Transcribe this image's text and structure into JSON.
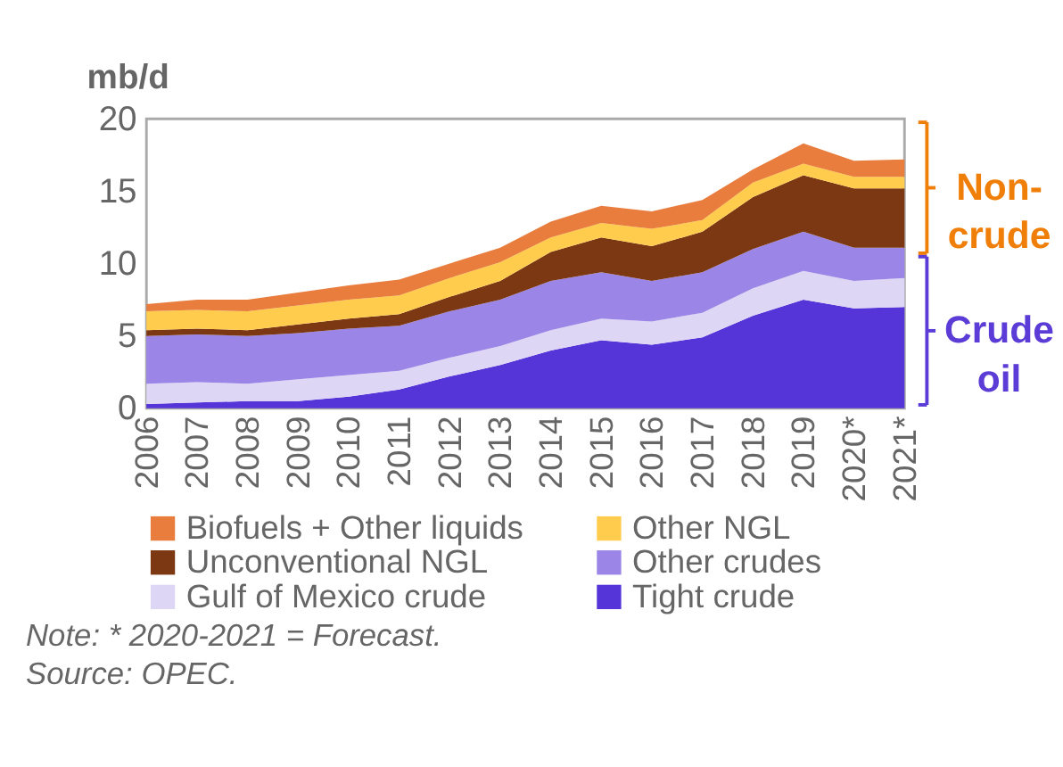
{
  "chart_data": {
    "type": "area",
    "stacked": true,
    "ylabel": "mb/d",
    "categories": [
      "2006",
      "2007",
      "2008",
      "2009",
      "2010",
      "2011",
      "2012",
      "2013",
      "2014",
      "2015",
      "2016",
      "2017",
      "2018",
      "2019",
      "2020*",
      "2021*"
    ],
    "series": [
      {
        "name": "Tight crude",
        "color": "#5534d8",
        "values": [
          0.3,
          0.4,
          0.5,
          0.5,
          0.8,
          1.3,
          2.2,
          3.0,
          4.0,
          4.7,
          4.4,
          4.9,
          6.4,
          7.5,
          6.9,
          7.0
        ]
      },
      {
        "name": "Gulf of Mexico crude",
        "color": "#ddd6f5",
        "values": [
          1.4,
          1.4,
          1.2,
          1.5,
          1.5,
          1.3,
          1.3,
          1.3,
          1.4,
          1.5,
          1.6,
          1.7,
          1.9,
          2.0,
          1.9,
          2.0
        ]
      },
      {
        "name": "Other crudes",
        "color": "#9b85e6",
        "values": [
          3.3,
          3.3,
          3.3,
          3.2,
          3.2,
          3.1,
          3.2,
          3.2,
          3.4,
          3.2,
          2.8,
          2.8,
          2.7,
          2.7,
          2.3,
          2.1
        ]
      },
      {
        "name": "Unconventional NGL",
        "color": "#7b3812",
        "values": [
          0.4,
          0.4,
          0.4,
          0.6,
          0.7,
          0.8,
          1.0,
          1.3,
          2.0,
          2.4,
          2.4,
          2.8,
          3.6,
          3.9,
          4.1,
          4.1
        ]
      },
      {
        "name": "Other NGL",
        "color": "#ffcc4d",
        "values": [
          1.3,
          1.3,
          1.3,
          1.3,
          1.3,
          1.3,
          1.3,
          1.3,
          1.0,
          1.0,
          1.2,
          0.8,
          1.0,
          0.8,
          0.8,
          0.8
        ]
      },
      {
        "name": "Biofuels + Other liquids",
        "color": "#e87d3e",
        "values": [
          0.5,
          0.7,
          0.8,
          0.9,
          1.0,
          1.1,
          1.0,
          1.0,
          1.1,
          1.2,
          1.2,
          1.4,
          0.9,
          1.4,
          1.1,
          1.2
        ]
      }
    ],
    "ylim": [
      0,
      20
    ],
    "yticks": [
      0,
      5,
      10,
      15,
      20
    ],
    "grid": false,
    "legend": "bottom",
    "annotations": [
      "Non-crude",
      "Crude oil",
      "Note: * 2020-2021 = Forecast.",
      "Source: OPEC."
    ]
  }
}
